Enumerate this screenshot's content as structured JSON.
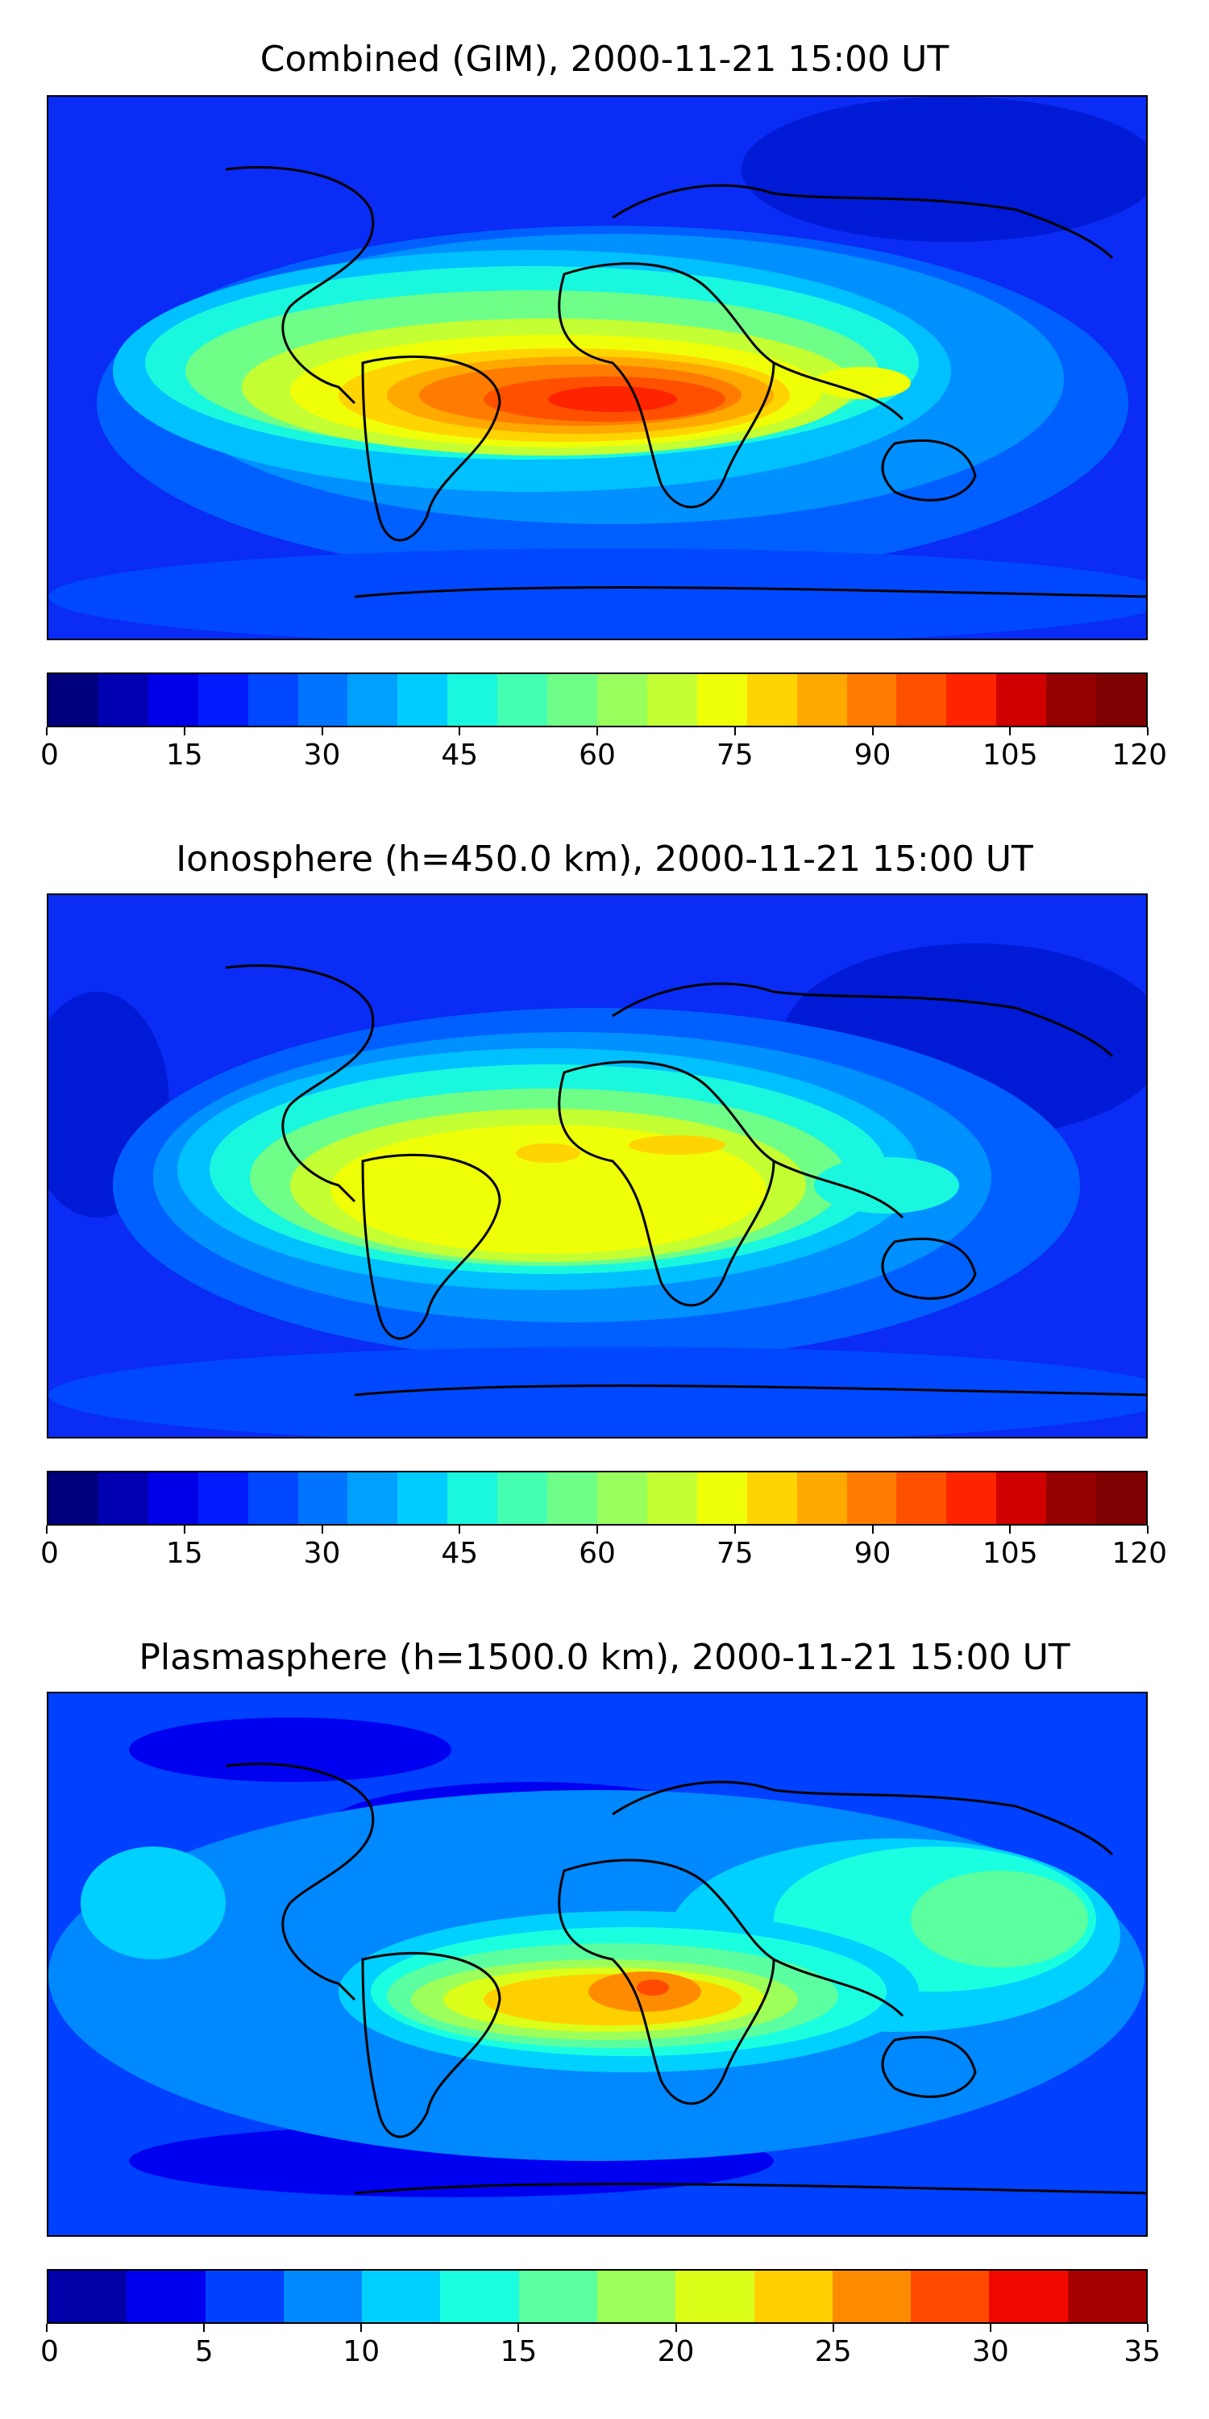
{
  "panels": [
    {
      "title": "Combined (GIM), 2000-11-21 15:00 UT",
      "colorbar": {
        "ticks": [
          "0",
          "15",
          "30",
          "45",
          "60",
          "75",
          "90",
          "105",
          "120"
        ],
        "min": 0,
        "max": 120,
        "colors": [
          "#00007f",
          "#0000b3",
          "#0000e8",
          "#001cff",
          "#0048ff",
          "#0074ff",
          "#00a0ff",
          "#00ccff",
          "#19f7de",
          "#44ffb2",
          "#6fff88",
          "#99ff5d",
          "#c4ff33",
          "#efff08",
          "#ffd400",
          "#ffa800",
          "#ff7c00",
          "#ff5000",
          "#fe2400",
          "#d10000",
          "#960000",
          "#7f0000"
        ]
      }
    },
    {
      "title": "Ionosphere  (h=450.0 km), 2000-11-21 15:00 UT",
      "colorbar": {
        "ticks": [
          "0",
          "15",
          "30",
          "45",
          "60",
          "75",
          "90",
          "105",
          "120"
        ],
        "min": 0,
        "max": 120,
        "colors": [
          "#00007f",
          "#0000b3",
          "#0000e8",
          "#001cff",
          "#0048ff",
          "#0074ff",
          "#00a0ff",
          "#00ccff",
          "#19f7de",
          "#44ffb2",
          "#6fff88",
          "#99ff5d",
          "#c4ff33",
          "#efff08",
          "#ffd400",
          "#ffa800",
          "#ff7c00",
          "#ff5000",
          "#fe2400",
          "#d10000",
          "#960000",
          "#7f0000"
        ]
      }
    },
    {
      "title": "Plasmasphere (h=1500.0 km), 2000-11-21 15:00 UT",
      "colorbar": {
        "ticks": [
          "0",
          "5",
          "10",
          "15",
          "20",
          "25",
          "30",
          "35"
        ],
        "min": 0,
        "max": 35,
        "colors": [
          "#0000a8",
          "#0000f0",
          "#0040ff",
          "#0088ff",
          "#00d0ff",
          "#1affe0",
          "#5cffa0",
          "#9cff5a",
          "#dcff1a",
          "#ffd000",
          "#ff8c00",
          "#ff4a00",
          "#f00800",
          "#a80000"
        ]
      }
    }
  ]
}
